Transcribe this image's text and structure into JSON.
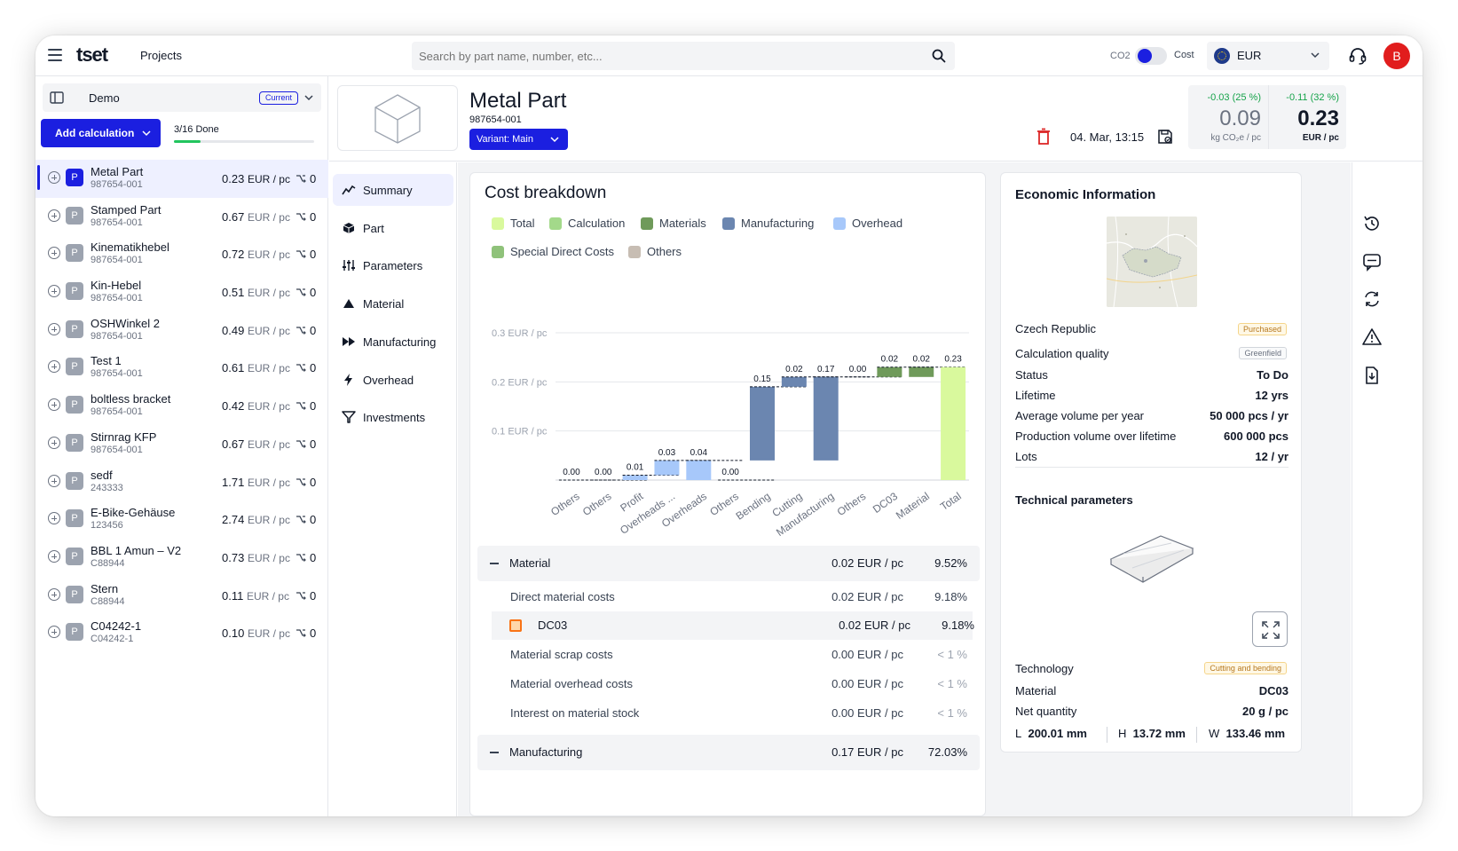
{
  "topbar": {
    "logo": "tset",
    "projects_link": "Projects",
    "search_placeholder": "Search by part name, number, etc...",
    "co2_label": "CO2",
    "cost_label": "Cost",
    "currency": "EUR",
    "avatar_initial": "B"
  },
  "sidebar": {
    "project_name": "Demo",
    "project_badge": "Current",
    "add_button": "Add calculation",
    "progress_text": "3/16 Done",
    "progress_fraction": 0.1875,
    "unit": "EUR / pc",
    "items": [
      {
        "type": "P",
        "name": "Metal Part",
        "number": "987654-001",
        "value": "0.23",
        "variants": "0",
        "active": true
      },
      {
        "type": "P",
        "name": "Stamped Part",
        "number": "987654-001",
        "value": "0.67",
        "variants": "0"
      },
      {
        "type": "P",
        "name": "Kinematikhebel",
        "number": "987654-001",
        "value": "0.72",
        "variants": "0"
      },
      {
        "type": "P",
        "name": "Kin-Hebel",
        "number": "987654-001",
        "value": "0.51",
        "variants": "0"
      },
      {
        "type": "P",
        "name": "OSHWinkel 2",
        "number": "987654-001",
        "value": "0.49",
        "variants": "0"
      },
      {
        "type": "P",
        "name": "Test 1",
        "number": "987654-001",
        "value": "0.61",
        "variants": "0"
      },
      {
        "type": "P",
        "name": "boltless bracket",
        "number": "987654-001",
        "value": "0.42",
        "variants": "0"
      },
      {
        "type": "P",
        "name": "Stirnrag KFP",
        "number": "987654-001",
        "value": "0.67",
        "variants": "0"
      },
      {
        "type": "P",
        "name": "sedf",
        "number": "243333",
        "value": "1.71",
        "variants": "0"
      },
      {
        "type": "P",
        "name": "E-Bike-Gehäuse",
        "number": "123456",
        "value": "2.74",
        "variants": "0"
      },
      {
        "type": "P",
        "name": "BBL 1 Amun – V2",
        "number": "C88944",
        "value": "0.73",
        "variants": "0"
      },
      {
        "type": "P",
        "name": "Stern",
        "number": "C88944",
        "value": "0.11",
        "variants": "0"
      },
      {
        "type": "P",
        "name": "C04242-1",
        "number": "C04242-1",
        "value": "0.10",
        "variants": "0"
      }
    ]
  },
  "header": {
    "title": "Metal Part",
    "number": "987654-001",
    "variant": "Variant: Main",
    "date": "04. Mar, 13:15",
    "co2_delta": "-0.03 (25 %)",
    "co2_value": "0.09",
    "co2_unit": "kg CO₂e / pc",
    "cost_delta": "-0.11 (32 %)",
    "cost_value": "0.23",
    "cost_unit": "EUR / pc"
  },
  "nav": {
    "items": [
      {
        "label": "Summary",
        "icon": "trend-icon",
        "active": true
      },
      {
        "label": "Part",
        "icon": "cube-icon"
      },
      {
        "label": "Parameters",
        "icon": "sliders-icon"
      },
      {
        "label": "Material",
        "icon": "triangle-icon"
      },
      {
        "label": "Manufacturing",
        "icon": "fast-forward-icon"
      },
      {
        "label": "Overhead",
        "icon": "lightning-icon"
      },
      {
        "label": "Investments",
        "icon": "funnel-icon"
      }
    ]
  },
  "cost_breakdown": {
    "title": "Cost breakdown",
    "legend": [
      {
        "label": "Total",
        "color": "#d9f99d"
      },
      {
        "label": "Calculation",
        "color": "#a3d98a"
      },
      {
        "label": "Materials",
        "color": "#6f9a5a"
      },
      {
        "label": "Manufacturing",
        "color": "#6b86b0"
      },
      {
        "label": "Overhead",
        "color": "#a7c8fa"
      },
      {
        "label": "Special Direct Costs",
        "color": "#8fc27a"
      },
      {
        "label": "Others",
        "color": "#c7bdb3"
      }
    ]
  },
  "chart_data": {
    "type": "bar",
    "subtype": "waterfall",
    "title": "Cost breakdown",
    "ylabel": "EUR / pc",
    "ylim": [
      0,
      0.3
    ],
    "yticks": [
      {
        "value": 0.1,
        "label": "0.1 EUR / pc"
      },
      {
        "value": 0.2,
        "label": "0.2 EUR / pc"
      },
      {
        "value": 0.3,
        "label": "0.3 EUR / pc"
      }
    ],
    "categories": [
      "Others",
      "Others",
      "Profit",
      "Overheads ...",
      "Overheads",
      "Others",
      "Bending",
      "Cutting",
      "Manufacturing",
      "Others",
      "DC03",
      "Material",
      "Total"
    ],
    "values": [
      0.0,
      0.0,
      0.01,
      0.03,
      0.04,
      0.0,
      0.15,
      0.02,
      0.17,
      0.0,
      0.02,
      0.02,
      0.23
    ],
    "labels": [
      "0.00",
      "0.00",
      "0.01",
      "0.03",
      "0.04",
      "0.00",
      "0.15",
      "0.02",
      "0.17",
      "0.00",
      "0.02",
      "0.02",
      "0.23"
    ],
    "bases": [
      0.0,
      0.0,
      0.0,
      0.01,
      0.0,
      0.0,
      0.04,
      0.19,
      0.04,
      0.21,
      0.21,
      0.21,
      0.0
    ],
    "groups": [
      "Calculation",
      "Calculation",
      "Overhead",
      "Overhead",
      "Overhead",
      "Others",
      "Manufacturing",
      "Manufacturing",
      "Manufacturing",
      "Others",
      "Materials",
      "Materials",
      "Total"
    ]
  },
  "breakdown": {
    "material": {
      "label": "Material",
      "value": "0.02 EUR / pc",
      "pct": "9.52%"
    },
    "rows": [
      {
        "label": "Direct material costs",
        "value": "0.02 EUR / pc",
        "pct": "9.18%"
      },
      {
        "label": "DC03",
        "value": "0.02 EUR / pc",
        "pct": "9.18%"
      },
      {
        "label": "Material scrap costs",
        "value": "0.00 EUR / pc",
        "pct": "< 1 %"
      },
      {
        "label": "Material overhead costs",
        "value": "0.00 EUR / pc",
        "pct": "< 1 %"
      },
      {
        "label": "Interest on material stock",
        "value": "0.00 EUR / pc",
        "pct": "< 1 %"
      }
    ],
    "manufacturing": {
      "label": "Manufacturing",
      "value": "0.17 EUR / pc",
      "pct": "72.03%"
    }
  },
  "economic": {
    "title": "Economic Information",
    "country": "Czech Republic",
    "purchased_tag": "Purchased",
    "quality_label": "Calculation quality",
    "quality_tag": "Greenfield",
    "rows": [
      {
        "label": "Status",
        "value": "To Do"
      },
      {
        "label": "Lifetime",
        "value": "12 yrs"
      },
      {
        "label": "Average volume per year",
        "value": "50 000 pcs / yr"
      },
      {
        "label": "Production volume over lifetime",
        "value": "600 000 pcs"
      },
      {
        "label": "Lots",
        "value": "12  / yr"
      }
    ],
    "tech_title": "Technical parameters",
    "technology_label": "Technology",
    "technology_tag": "Cutting and bending",
    "material_label": "Material",
    "material_value": "DC03",
    "net_qty_label": "Net quantity",
    "net_qty_value": "20 g / pc",
    "dims": {
      "l_label": "L",
      "l_value": "200.01 mm",
      "h_label": "H",
      "h_value": "13.72 mm",
      "w_label": "W",
      "w_value": "133.46 mm"
    }
  },
  "colors": {
    "accent": "#1b1fe0",
    "positive": "#16a34a",
    "danger": "#dc2626"
  }
}
